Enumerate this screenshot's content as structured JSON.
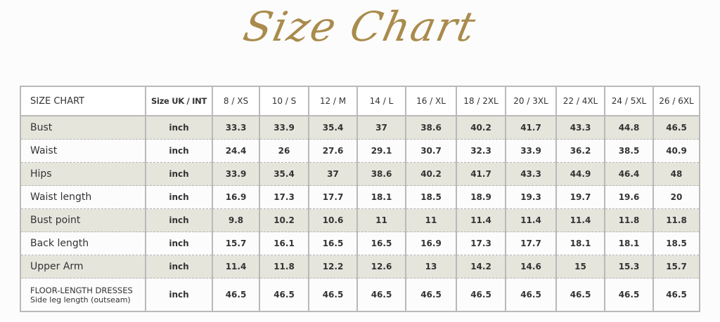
{
  "title": "Size Chart",
  "table": {
    "corner_label": "SIZE CHART",
    "unit_header": "Size UK / INT",
    "sizes": [
      "8 / XS",
      "10 / S",
      "12 / M",
      "14 / L",
      "16 / XL",
      "18 / 2XL",
      "20 / 3XL",
      "22 / 4XL",
      "24 / 5XL",
      "26 / 6XL"
    ],
    "rows": [
      {
        "label": "Bust",
        "unit": "inch",
        "values": [
          "33.3",
          "33.9",
          "35.4",
          "37",
          "38.6",
          "40.2",
          "41.7",
          "43.3",
          "44.8",
          "46.5"
        ]
      },
      {
        "label": "Waist",
        "unit": "inch",
        "values": [
          "24.4",
          "26",
          "27.6",
          "29.1",
          "30.7",
          "32.3",
          "33.9",
          "36.2",
          "38.5",
          "40.9"
        ]
      },
      {
        "label": "Hips",
        "unit": "inch",
        "values": [
          "33.9",
          "35.4",
          "37",
          "38.6",
          "40.2",
          "41.7",
          "43.3",
          "44.9",
          "46.4",
          "48"
        ]
      },
      {
        "label": "Waist length",
        "unit": "inch",
        "values": [
          "16.9",
          "17.3",
          "17.7",
          "18.1",
          "18.5",
          "18.9",
          "19.3",
          "19.7",
          "19.6",
          "20"
        ]
      },
      {
        "label": "Bust point",
        "unit": "inch",
        "values": [
          "9.8",
          "10.2",
          "10.6",
          "11",
          "11",
          "11.4",
          "11.4",
          "11.4",
          "11.8",
          "11.8"
        ]
      },
      {
        "label": "Back length",
        "unit": "inch",
        "values": [
          "15.7",
          "16.1",
          "16.5",
          "16.5",
          "16.9",
          "17.3",
          "17.7",
          "18.1",
          "18.1",
          "18.5"
        ]
      },
      {
        "label": "Upper Arm",
        "unit": "inch",
        "values": [
          "11.4",
          "11.8",
          "12.2",
          "12.6",
          "13",
          "14.2",
          "14.6",
          "15",
          "15.3",
          "15.7"
        ]
      },
      {
        "label": "FLOOR-LENGTH DRESSES",
        "sublabel": "Side leg length (outseam)",
        "unit": "inch",
        "values": [
          "46.5",
          "46.5",
          "46.5",
          "46.5",
          "46.5",
          "46.5",
          "46.5",
          "46.5",
          "46.5",
          "46.5"
        ]
      }
    ]
  },
  "colors": {
    "title": "#a98b4c",
    "shaded_row": "#e6e5dc",
    "border": "#b9b9b9"
  }
}
